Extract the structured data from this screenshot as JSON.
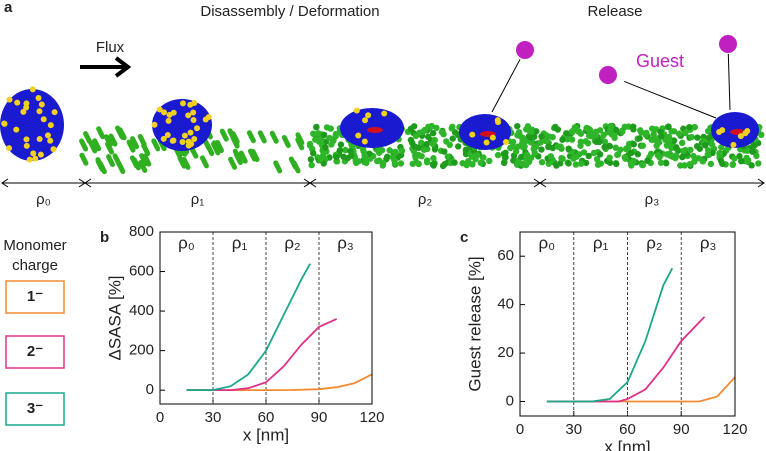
{
  "panel_a": {
    "label": "a",
    "headings": [
      "Disassembly / Deformation",
      "Release"
    ],
    "flux": "Flux",
    "guest": "Guest",
    "regions": [
      "ρ₀",
      "ρ₁",
      "ρ₂",
      "ρ₃"
    ]
  },
  "legend_title": "Monomer charge",
  "chart_data": [
    {
      "type": "line",
      "panel": "b",
      "ylabel": "ΔSASA [%]",
      "xlabel": "x [nm]",
      "xlim": [
        0,
        120
      ],
      "xticks": [
        0,
        30,
        60,
        90,
        120
      ],
      "ylim": [
        -70,
        800
      ],
      "yticks": [
        0,
        200,
        400,
        600,
        800
      ],
      "regions": [
        "ρ₀",
        "ρ₁",
        "ρ₂",
        "ρ₃"
      ],
      "dividers": [
        30,
        60,
        90
      ],
      "series": [
        {
          "name": "1⁻",
          "color": "#f28a30",
          "x": [
            15,
            30,
            45,
            60,
            75,
            90,
            100,
            110,
            120
          ],
          "values": [
            0,
            0,
            0,
            0,
            1,
            5,
            15,
            35,
            80
          ]
        },
        {
          "name": "2⁻",
          "color": "#e0308a",
          "x": [
            15,
            30,
            40,
            50,
            60,
            70,
            80,
            90,
            100
          ],
          "values": [
            0,
            0,
            0,
            10,
            40,
            120,
            230,
            320,
            360
          ]
        },
        {
          "name": "3⁻",
          "color": "#1aa889",
          "x": [
            15,
            30,
            40,
            50,
            60,
            70,
            80,
            85
          ],
          "values": [
            0,
            0,
            20,
            80,
            200,
            380,
            560,
            640
          ]
        }
      ]
    },
    {
      "type": "line",
      "panel": "c",
      "ylabel": "Guest release [%]",
      "xlabel": "x [nm]",
      "xlim": [
        0,
        120
      ],
      "xticks": [
        0,
        30,
        60,
        90,
        120
      ],
      "ylim": [
        -6,
        70
      ],
      "yticks": [
        0,
        20,
        40,
        60
      ],
      "regions": [
        "ρ₀",
        "ρ₁",
        "ρ₂",
        "ρ₃"
      ],
      "dividers": [
        30,
        60,
        90
      ],
      "series": [
        {
          "color": "#f28a30",
          "x": [
            15,
            30,
            60,
            90,
            100,
            110,
            120
          ],
          "values": [
            0,
            0,
            0,
            0,
            0,
            2,
            10
          ]
        },
        {
          "color": "#e0308a",
          "x": [
            15,
            30,
            55,
            60,
            70,
            80,
            90,
            103
          ],
          "values": [
            0,
            0,
            0,
            1,
            5,
            14,
            25,
            35
          ]
        },
        {
          "color": "#1aa889",
          "x": [
            15,
            30,
            40,
            50,
            60,
            70,
            80,
            85
          ],
          "values": [
            0,
            0,
            0,
            1,
            8,
            25,
            48,
            55
          ]
        }
      ]
    }
  ]
}
